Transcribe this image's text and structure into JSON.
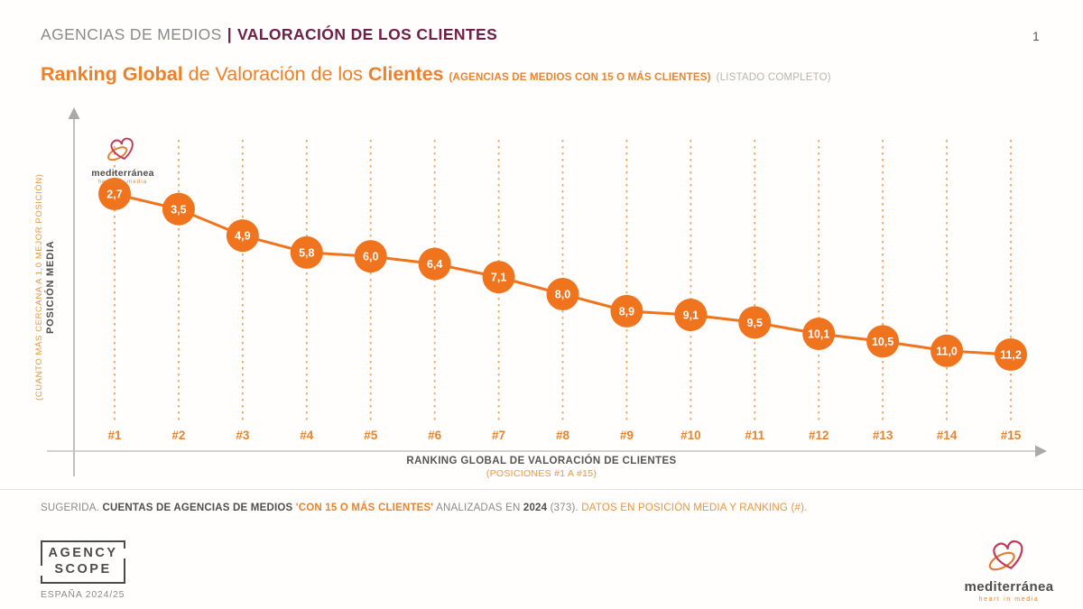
{
  "page": {
    "header_left": "AGENCIAS DE MEDIOS",
    "header_sep": "|",
    "header_right": "VALORACIÓN DE LOS CLIENTES",
    "page_number": "1"
  },
  "title": {
    "part1": "Ranking Global",
    "part2": " de Valoración de los ",
    "part3": "Clientes",
    "sub1": "(AGENCIAS DE MEDIOS CON 15 O MÁS CLIENTES)",
    "sub2": "(LISTADO COMPLETO)"
  },
  "chart_data": {
    "type": "line",
    "title": "Ranking Global de Valoración de los Clientes",
    "categories": [
      "#1",
      "#2",
      "#3",
      "#4",
      "#5",
      "#6",
      "#7",
      "#8",
      "#9",
      "#10",
      "#11",
      "#12",
      "#13",
      "#14",
      "#15"
    ],
    "values": [
      2.7,
      3.5,
      4.9,
      5.8,
      6.0,
      6.4,
      7.1,
      8.0,
      8.9,
      9.1,
      9.5,
      10.1,
      10.5,
      11.0,
      11.2
    ],
    "point_labels": [
      "2,7",
      "3,5",
      "4,9",
      "5,8",
      "6,0",
      "6,4",
      "7,1",
      "8,0",
      "8,9",
      "9,1",
      "9,5",
      "10,1",
      "10,5",
      "11,0",
      "11,2"
    ],
    "xlabel": "RANKING GLOBAL DE VALORACIÓN DE CLIENTES",
    "xlabel_sub": "(POSICIONES #1 A #15)",
    "ylabel": "POSICIÓN MEDIA",
    "ylabel_sub": "(CUANTO MÁS CERCANA A 1,0 MEJOR POSICIÓN)",
    "ylim": [
      1,
      13
    ],
    "y_orientation": "lower value plotted higher (better position)",
    "grid": "vertical dashed lines per category",
    "legend": "none",
    "colors": {
      "point": "#f0731d",
      "line": "#f0731d",
      "grid": "#f2a664",
      "tick": "#e8842e"
    }
  },
  "watermark": {
    "brand": "mediterránea",
    "tagline": "heart in media"
  },
  "footnote": {
    "seg1": "SUGERIDA. ",
    "seg2": "CUENTAS DE AGENCIAS DE MEDIOS ",
    "seg3": "'CON 15 O MÁS CLIENTES'",
    "seg4": " ANALIZADAS EN ",
    "seg5": "2024",
    "seg6": " (373). ",
    "seg7": "DATOS EN POSICIÓN MEDIA Y RANKING (#)."
  },
  "footer": {
    "agency_line1": "AGENCY",
    "agency_line2": "SCOPE",
    "agency_sub": "ESPAÑA 2024/25",
    "brand": "mediterránea",
    "brand_tagline": "heart in media"
  },
  "colors": {
    "accent_orange": "#f0731d",
    "label_orange": "#e8842e",
    "grid_orange": "#f2a664",
    "maroon": "#6e2046",
    "text_gray": "#8a8a8a",
    "text_dark": "#4f4f4f",
    "axis_gray": "#b4b4b4",
    "brand_crimson": "#c23a5a"
  }
}
